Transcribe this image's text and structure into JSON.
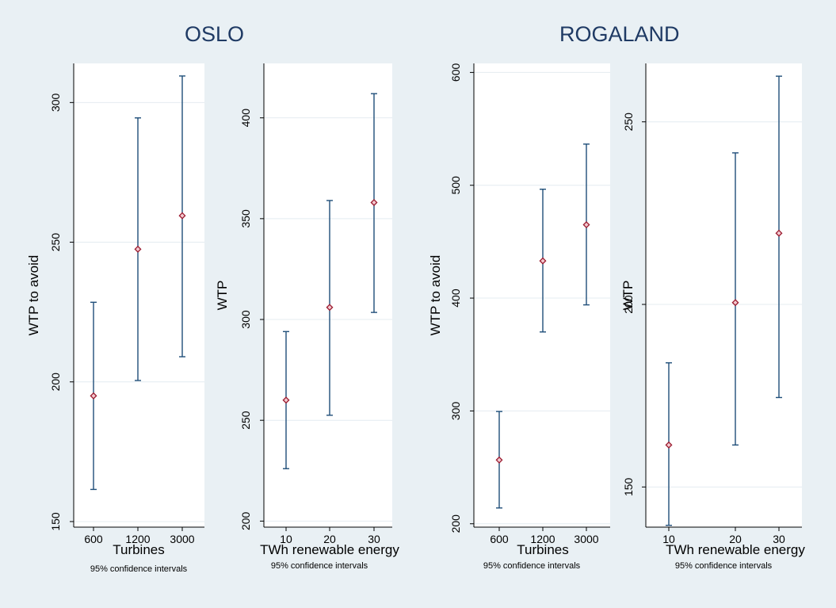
{
  "headings": {
    "left": "OSLO",
    "right": "ROGALAND"
  },
  "colors": {
    "background": "#e9f0f4",
    "plot_area": "#ffffff",
    "error_bar": "#1f4e79",
    "marker_edge": "#9b1b30",
    "marker_fill": "#f3c9cf",
    "gridline": "#e4ecf1",
    "axis": "#000000"
  },
  "chart_data": [
    {
      "type": "errorbar",
      "title": "OSLO",
      "xlabel": "Turbines",
      "ylabel": "WTP to avoid",
      "note": "95% confidence intervals",
      "categories": [
        "600",
        "1200",
        "3000"
      ],
      "estimates": [
        195,
        247.5,
        259.5
      ],
      "ci_lower": [
        161.5,
        200.5,
        209
      ],
      "ci_upper": [
        228.5,
        294.5,
        309.5
      ],
      "ylim": [
        148,
        314
      ],
      "yticks": [
        150,
        200,
        250,
        300
      ],
      "grid": true
    },
    {
      "type": "errorbar",
      "title": "OSLO",
      "xlabel": "TWh renewable energy",
      "ylabel": "WTP",
      "note": "95% confidence intervals",
      "categories": [
        "10",
        "20",
        "30"
      ],
      "estimates": [
        260,
        306,
        358
      ],
      "ci_lower": [
        226,
        252.5,
        303.5
      ],
      "ci_upper": [
        294,
        359,
        412
      ],
      "ylim": [
        197,
        427
      ],
      "yticks": [
        200,
        250,
        300,
        350,
        400
      ],
      "grid": true
    },
    {
      "type": "errorbar",
      "title": "ROGALAND",
      "xlabel": "Turbines",
      "ylabel": "WTP to avoid",
      "note": "95% confidence intervals",
      "categories": [
        "600",
        "1200",
        "3000"
      ],
      "estimates": [
        256.5,
        433,
        465
      ],
      "ci_lower": [
        214,
        370,
        394
      ],
      "ci_upper": [
        299.5,
        496.5,
        536.5
      ],
      "ylim": [
        197,
        608
      ],
      "yticks": [
        200,
        300,
        400,
        500,
        600
      ],
      "grid": true
    },
    {
      "type": "errorbar",
      "title": "ROGALAND",
      "xlabel": "TWh renewable energy",
      "ylabel": "WTP",
      "note": "95% confidence intervals",
      "categories": [
        "10",
        "20",
        "30"
      ],
      "estimates": [
        161.5,
        200.5,
        219.5
      ],
      "ci_lower": [
        139.5,
        161.5,
        174.5
      ],
      "ci_upper": [
        184,
        241.5,
        262.5
      ],
      "ylim": [
        139,
        266
      ],
      "yticks": [
        150,
        200,
        250
      ],
      "grid": true
    }
  ]
}
